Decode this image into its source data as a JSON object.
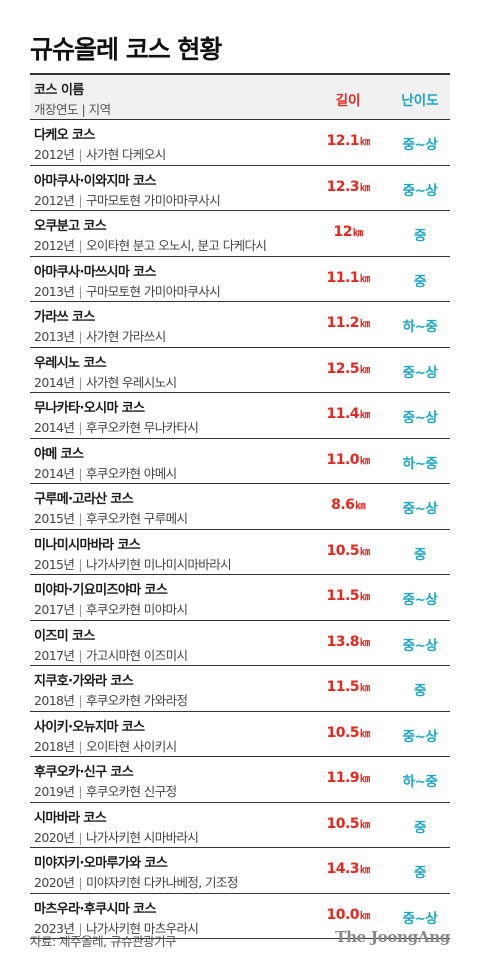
{
  "title": "규슈올레 코스 현황",
  "header": {
    "col_name": "코스 이름",
    "col_sub": "개장연도 | 지역",
    "col_length": "길이",
    "col_difficulty": "난이도"
  },
  "length_unit": "㎞",
  "colors": {
    "length": "#e8261d",
    "difficulty": "#1aa6c8"
  },
  "chart_data": {
    "type": "table",
    "title": "규슈올레 코스 현황",
    "columns": [
      "코스 이름",
      "개장연도",
      "지역",
      "길이",
      "난이도"
    ],
    "rows": [
      {
        "name": "다케오 코스",
        "year": "2012년",
        "region": "사가현 다케오시",
        "length": "12.1",
        "difficulty": "중~상"
      },
      {
        "name": "아마쿠사·이와지마 코스",
        "year": "2012년",
        "region": "구마모토현 가미아마쿠사시",
        "length": "12.3",
        "difficulty": "중~상"
      },
      {
        "name": "오쿠분고 코스",
        "year": "2012년",
        "region": "오이타현 분고 오노시, 분고 다케다시",
        "length": "12",
        "difficulty": "중"
      },
      {
        "name": "아마쿠사·마쓰시마 코스",
        "year": "2013년",
        "region": "구마모토현 가미아마쿠사시",
        "length": "11.1",
        "difficulty": "중"
      },
      {
        "name": "가라쓰 코스",
        "year": "2013년",
        "region": "사가현 가라쓰시",
        "length": "11.2",
        "difficulty": "하~중"
      },
      {
        "name": "우레시노 코스",
        "year": "2014년",
        "region": "사가현 우레시노시",
        "length": "12.5",
        "difficulty": "중~상"
      },
      {
        "name": "무나카타·오시마 코스",
        "year": "2014년",
        "region": "후쿠오카현 무나카타시",
        "length": "11.4",
        "difficulty": "중~상"
      },
      {
        "name": "야메 코스",
        "year": "2014년",
        "region": "후쿠오카현 야메시",
        "length": "11.0",
        "difficulty": "하~중"
      },
      {
        "name": "구루메·고라산 코스",
        "year": "2015년",
        "region": "후쿠오카현 구루메시",
        "length": "8.6",
        "difficulty": "중~상"
      },
      {
        "name": "미나미시마바라 코스",
        "year": "2015년",
        "region": "나가사키현 미나미시마바라시",
        "length": "10.5",
        "difficulty": "중"
      },
      {
        "name": "미야마·기요미즈야마 코스",
        "year": "2017년",
        "region": "후쿠오카현 미야마시",
        "length": "11.5",
        "difficulty": "중~상"
      },
      {
        "name": "이즈미 코스",
        "year": "2017년",
        "region": "가고시마현 이즈미시",
        "length": "13.8",
        "difficulty": "중~상"
      },
      {
        "name": "지쿠호·가와라 코스",
        "year": "2018년",
        "region": "후쿠오카현 가와라정",
        "length": "11.5",
        "difficulty": "중"
      },
      {
        "name": "사이키·오뉴지마 코스",
        "year": "2018년",
        "region": "오이타현 사이키시",
        "length": "10.5",
        "difficulty": "중~상"
      },
      {
        "name": "후쿠오카·신구 코스",
        "year": "2019년",
        "region": "후쿠오카현 신구정",
        "length": "11.9",
        "difficulty": "하~중"
      },
      {
        "name": "시마바라 코스",
        "year": "2020년",
        "region": "나가사키현 시마바라시",
        "length": "10.5",
        "difficulty": "중"
      },
      {
        "name": "미야자키·오마루가와 코스",
        "year": "2020년",
        "region": "미야자키현 다카나베정, 기조정",
        "length": "14.3",
        "difficulty": "중"
      },
      {
        "name": "마츠우라·후쿠시마 코스",
        "year": "2023년",
        "region": "나가사키현 마츠우라시",
        "length": "10.0",
        "difficulty": "중~상"
      }
    ]
  },
  "footer": {
    "source": "자료: 제주올레, 규슈관광기구",
    "brand": "The JoongAng"
  }
}
